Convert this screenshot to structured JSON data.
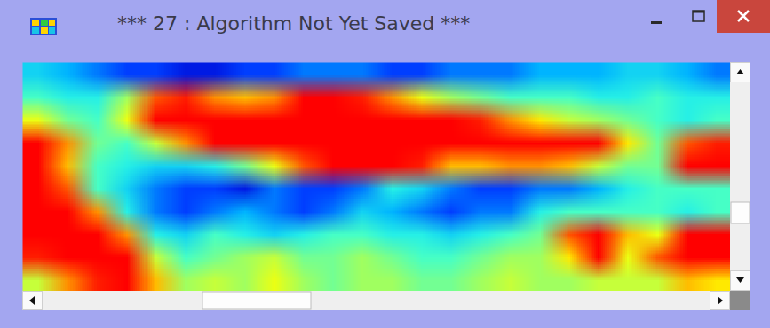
{
  "window": {
    "title": "*** 27 : Algorithm Not Yet Saved ***"
  },
  "chart_data": {
    "type": "heatmap",
    "tick_labels": false,
    "zlim": [
      0,
      100
    ],
    "cells": [
      [
        30,
        25,
        20,
        15,
        15,
        10,
        10,
        15,
        15,
        20,
        20,
        20,
        15,
        15,
        20,
        20,
        20,
        25,
        25,
        25,
        30,
        30,
        25,
        20
      ],
      [
        40,
        35,
        35,
        50,
        80,
        85,
        75,
        70,
        75,
        90,
        95,
        85,
        75,
        60,
        50,
        45,
        40,
        40,
        40,
        35,
        35,
        40,
        35,
        35
      ],
      [
        60,
        45,
        40,
        60,
        100,
        100,
        100,
        100,
        100,
        100,
        100,
        100,
        100,
        100,
        95,
        85,
        75,
        65,
        55,
        50,
        45,
        40,
        35,
        40
      ],
      [
        100,
        75,
        45,
        40,
        55,
        75,
        90,
        100,
        100,
        100,
        100,
        100,
        100,
        100,
        100,
        100,
        100,
        100,
        100,
        90,
        65,
        45,
        80,
        85
      ],
      [
        100,
        70,
        40,
        35,
        30,
        30,
        35,
        45,
        60,
        80,
        100,
        100,
        100,
        85,
        70,
        70,
        75,
        75,
        70,
        55,
        45,
        45,
        90,
        100
      ],
      [
        95,
        80,
        40,
        30,
        20,
        15,
        15,
        10,
        20,
        15,
        15,
        20,
        35,
        30,
        20,
        15,
        15,
        20,
        20,
        25,
        35,
        40,
        40,
        40
      ],
      [
        100,
        100,
        75,
        35,
        20,
        15,
        20,
        25,
        20,
        15,
        20,
        30,
        25,
        20,
        15,
        20,
        20,
        35,
        40,
        40,
        40,
        40,
        35,
        40
      ],
      [
        100,
        100,
        100,
        75,
        35,
        30,
        40,
        35,
        30,
        35,
        40,
        40,
        35,
        35,
        30,
        35,
        40,
        45,
        80,
        100,
        70,
        60,
        95,
        90
      ],
      [
        85,
        100,
        100,
        100,
        55,
        40,
        45,
        50,
        55,
        45,
        45,
        50,
        45,
        40,
        40,
        45,
        50,
        50,
        65,
        90,
        60,
        80,
        100,
        100
      ],
      [
        55,
        75,
        85,
        100,
        70,
        50,
        55,
        50,
        60,
        50,
        45,
        50,
        50,
        45,
        45,
        50,
        55,
        50,
        50,
        55,
        55,
        55,
        70,
        65
      ]
    ]
  }
}
